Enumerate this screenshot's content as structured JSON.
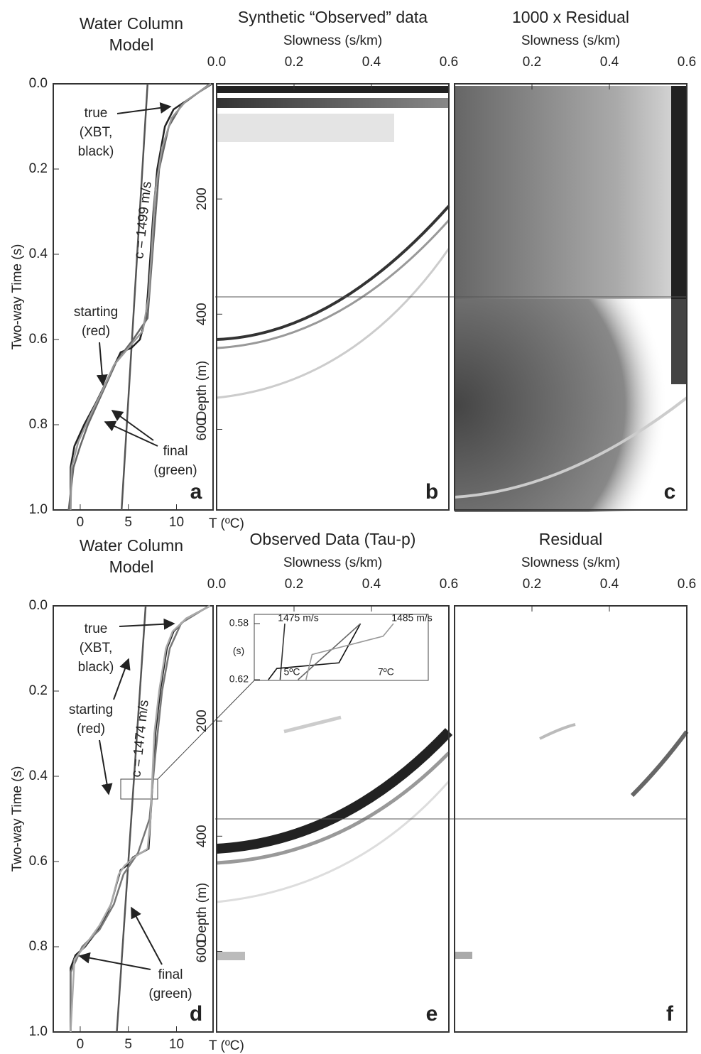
{
  "chart_data": [
    {
      "type": "line",
      "title": "Water Column Model",
      "xlabel": "T (ºC)",
      "ylabel": "Two-way Time (s)",
      "label": "a",
      "xlim": [
        -2.8,
        13.8
      ],
      "xticks": [
        0,
        5,
        10
      ],
      "ylim": [
        0,
        1
      ],
      "y_inverted": true,
      "yticks": [
        {
          "value": 0,
          "label": "0.0"
        },
        0.2,
        0.4,
        0.6,
        0.8,
        {
          "value": 1,
          "label": "1.0"
        }
      ],
      "series": [
        {
          "color": "#555555",
          "x": [
            7.0,
            4.3
          ],
          "values": [
            0,
            1
          ]
        },
        {
          "color": "#222222",
          "x": [
            13.7,
            12.3,
            9.7,
            8.8,
            8.0,
            7.6,
            7.3,
            7.0,
            6.8,
            6.2,
            5.3,
            4.2,
            2.7,
            1.6,
            0.4,
            -0.6,
            -1.0,
            -1.0
          ],
          "values": [
            0,
            0.02,
            0.06,
            0.1,
            0.2,
            0.3,
            0.4,
            0.5,
            0.55,
            0.6,
            0.62,
            0.63,
            0.7,
            0.75,
            0.8,
            0.85,
            0.9,
            1.0
          ]
        },
        {
          "color": "#666666",
          "x": [
            13.5,
            10.5,
            9.2,
            8.2,
            7.5,
            7.0,
            5.5,
            3.8,
            2.8,
            1.8,
            0.8,
            0.0,
            -0.7,
            -1.2
          ],
          "values": [
            0,
            0.05,
            0.1,
            0.2,
            0.4,
            0.55,
            0.6,
            0.65,
            0.7,
            0.75,
            0.8,
            0.85,
            0.9,
            1.0
          ]
        },
        {
          "color": "#999999",
          "x": [
            13.6,
            11,
            9.5,
            8.5,
            7.8,
            7.4,
            7.1,
            6.5,
            5.0,
            3.5,
            2.3,
            1.0,
            -0.2,
            -0.9,
            -1.0
          ],
          "values": [
            0,
            0.04,
            0.08,
            0.15,
            0.25,
            0.4,
            0.5,
            0.58,
            0.62,
            0.66,
            0.72,
            0.78,
            0.84,
            0.9,
            1.0
          ]
        }
      ],
      "annotations": [
        {
          "lines": [
            "true",
            "(XBT,",
            "black)"
          ]
        },
        {
          "lines": [
            "c = 1499 m/s"
          ]
        },
        {
          "lines": [
            "starting",
            "(red)"
          ]
        },
        {
          "lines": [
            "final",
            "(green)"
          ]
        }
      ]
    },
    {
      "type": "image",
      "title": "Synthetic “Observed” data",
      "xlabel": "Slowness (s/km)",
      "ylabel": "Depth (m)",
      "label": "b",
      "xlim": [
        0,
        0.6
      ],
      "xticks": [
        {
          "value": 0,
          "label": "0.0"
        },
        0.2,
        0.4,
        0.6
      ],
      "ylim": [
        0,
        740
      ],
      "y_inverted": true,
      "yticks": [
        200,
        400,
        600
      ]
    },
    {
      "type": "image",
      "title": "1000 x Residual",
      "xlabel": "Slowness (s/km)",
      "label": "c",
      "xlim": [
        0,
        0.6
      ],
      "xticks": [
        0.2,
        0.4,
        0.6
      ]
    },
    {
      "type": "line",
      "title": "Water Column Model",
      "xlabel": "T (ºC)",
      "ylabel": "Two-way Time (s)",
      "label": "d",
      "xlim": [
        -2.8,
        13.8
      ],
      "xticks": [
        0,
        5,
        10
      ],
      "ylim": [
        0,
        1
      ],
      "y_inverted": true,
      "yticks": [
        {
          "value": 0,
          "label": "0.0"
        },
        0.2,
        0.4,
        0.6,
        0.8,
        {
          "value": 1,
          "label": "1.0"
        }
      ],
      "series": [
        {
          "color": "#555555",
          "x": [
            6.8,
            3.8
          ],
          "values": [
            0,
            1
          ]
        },
        {
          "color": "#222222",
          "x": [
            13.5,
            11,
            9.7,
            9.0,
            8.3,
            7.8,
            7.3,
            7.1,
            5.5,
            4.8,
            4.2,
            3.8,
            3.2,
            2.2,
            0.5,
            -0.5,
            -1.0,
            -1.0
          ],
          "values": [
            0,
            0.03,
            0.06,
            0.1,
            0.2,
            0.3,
            0.5,
            0.57,
            0.59,
            0.61,
            0.62,
            0.65,
            0.7,
            0.75,
            0.8,
            0.82,
            0.85,
            1.0
          ]
        },
        {
          "color": "#777777",
          "x": [
            13.4,
            10.5,
            9.3,
            8.5,
            7.8,
            7.2,
            6.0,
            4.5,
            3.5,
            2.0,
            0.2,
            -1.0,
            -1.0
          ],
          "values": [
            0,
            0.04,
            0.1,
            0.2,
            0.35,
            0.5,
            0.58,
            0.63,
            0.7,
            0.76,
            0.8,
            0.86,
            1.0
          ]
        },
        {
          "color": "#aaaaaa",
          "x": [
            13.5,
            11,
            9.6,
            8.9,
            8.2,
            7.7,
            7.3,
            7.0,
            5.6,
            4.6,
            4.0,
            3.2,
            2.0,
            0.4,
            -0.6,
            -1.0
          ],
          "values": [
            0,
            0.03,
            0.06,
            0.1,
            0.2,
            0.3,
            0.5,
            0.57,
            0.59,
            0.61,
            0.63,
            0.7,
            0.75,
            0.8,
            0.83,
            1.0
          ]
        }
      ],
      "annotations": [
        {
          "lines": [
            "true",
            "(XBT,",
            "black)"
          ]
        },
        {
          "lines": [
            "c = 1474 m/s"
          ]
        },
        {
          "lines": [
            "starting",
            "(red)"
          ]
        },
        {
          "lines": [
            "final",
            "(green)"
          ]
        }
      ]
    },
    {
      "type": "image",
      "title": "Observed Data (Tau-p)",
      "xlabel": "Slowness (s/km)",
      "ylabel": "Depth (m)",
      "label": "e",
      "xlim": [
        0,
        0.6
      ],
      "xticks": [
        {
          "value": 0,
          "label": "0.0"
        },
        0.2,
        0.4,
        0.6
      ],
      "ylim": [
        0,
        740
      ],
      "y_inverted": true,
      "yticks": [
        200,
        400,
        600
      ]
    },
    {
      "type": "image",
      "title": "Residual",
      "xlabel": "Slowness (s/km)",
      "label": "f",
      "xlim": [
        0,
        0.6
      ],
      "xticks": [
        0.2,
        0.4,
        0.6
      ]
    },
    {
      "type": "line",
      "ylabel": "(s)",
      "xlim": [
        4.2,
        7.9
      ],
      "xticks": [
        {
          "value": 5,
          "label": "5ºC"
        },
        {
          "value": 7,
          "label": "7ºC"
        }
      ],
      "ylim": [
        0.58,
        0.62
      ],
      "y_inverted": true,
      "yticks": [
        0.58,
        0.62
      ],
      "series": [
        {
          "color": "#333333",
          "x": [
            4.85,
            4.75
          ],
          "values": [
            0.58,
            0.62
          ]
        },
        {
          "color": "#111111",
          "x": [
            6.46,
            6.0,
            4.68,
            4.5
          ],
          "values": [
            0.58,
            0.608,
            0.612,
            0.62
          ]
        },
        {
          "color": "#666666",
          "x": [
            6.46,
            5.13
          ],
          "values": [
            0.58,
            0.62
          ]
        },
        {
          "color": "#999999",
          "x": [
            7.16,
            6.94,
            5.43,
            5.3
          ],
          "values": [
            0.58,
            0.589,
            0.602,
            0.62
          ]
        }
      ],
      "annotations": [
        {
          "lines": [
            "1475 m/s"
          ]
        },
        {
          "lines": [
            "1485 m/s"
          ]
        }
      ]
    }
  ]
}
